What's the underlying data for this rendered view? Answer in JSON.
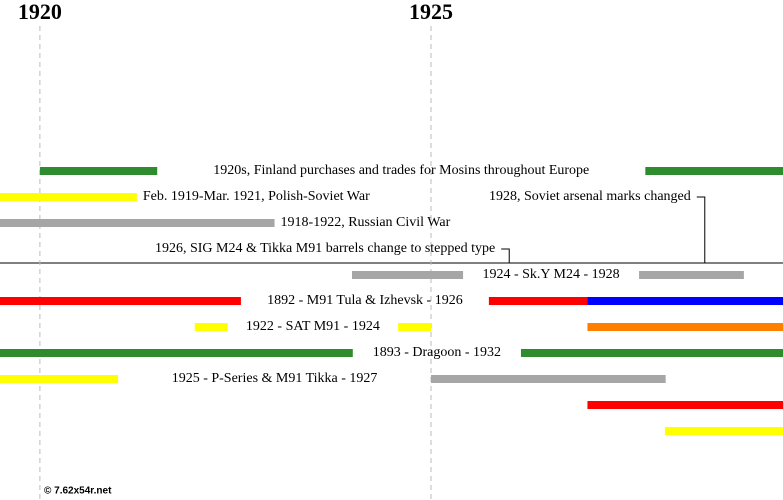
{
  "chart_data": {
    "type": "timeline",
    "xlim": [
      1919.49,
      1929.5
    ],
    "xticks": [
      1920,
      1925
    ],
    "grid": true,
    "rows": [
      {
        "label": "1920s, Finland purchases and trades for Mosins throughout Europe",
        "segments": [
          {
            "start": 1920.0,
            "end": 1921.5,
            "color": "#2e8b2e"
          },
          {
            "start": 1927.74,
            "end": 1929.5,
            "color": "#2e8b2e"
          }
        ]
      },
      {
        "label": "Feb. 1919-Mar. 1921, Polish-Soviet War",
        "segments": [
          {
            "start": 1919.49,
            "end": 1921.24,
            "color": "#ffff00"
          }
        ]
      },
      {
        "label": "1918-1922, Russian Civil War",
        "segments": [
          {
            "start": 1919.49,
            "end": 1923.0,
            "color": "#a6a6a6"
          }
        ]
      },
      {
        "label": "1924 - Sk.Y M24 - 1928",
        "segments": [
          {
            "start": 1923.99,
            "end": 1925.41,
            "color": "#a6a6a6"
          },
          {
            "start": 1927.66,
            "end": 1929.0,
            "color": "#a6a6a6"
          }
        ]
      },
      {
        "label": "1892 - M91 Tula & Izhevsk - 1926",
        "segments": [
          {
            "start": 1919.49,
            "end": 1922.57,
            "color": "#ff0000"
          },
          {
            "start": 1925.74,
            "end": 1927.0,
            "color": "#ff0000"
          },
          {
            "start": 1927.0,
            "end": 1929.5,
            "color": "#0000ff"
          }
        ]
      },
      {
        "label": "1922 - SAT M91 - 1924",
        "segments": [
          {
            "start": 1921.98,
            "end": 1922.4,
            "color": "#ffff00"
          },
          {
            "start": 1924.58,
            "end": 1925.0,
            "color": "#ffff00"
          },
          {
            "start": 1927.0,
            "end": 1929.5,
            "color": "#ff8000"
          }
        ]
      },
      {
        "label": "1893 - Dragoon - 1932",
        "segments": [
          {
            "start": 1919.49,
            "end": 1924.0,
            "color": "#2e8b2e"
          },
          {
            "start": 1926.15,
            "end": 1929.5,
            "color": "#2e8b2e"
          }
        ]
      },
      {
        "label": "1925 - P-Series & M91 Tikka - 1927",
        "segments": [
          {
            "start": 1919.49,
            "end": 1921.0,
            "color": "#ffff00"
          },
          {
            "start": 1925.0,
            "end": 1928.0,
            "color": "#a6a6a6"
          }
        ]
      },
      {
        "segments": [
          {
            "start": 1927.0,
            "end": 1929.5,
            "color": "#ff0000"
          }
        ]
      },
      {
        "segments": [
          {
            "start": 1927.99,
            "end": 1929.5,
            "color": "#ffff00"
          }
        ]
      }
    ],
    "annotations": [
      {
        "label": "1928, Soviet arsenal marks changed",
        "x": 1928.5
      },
      {
        "label": "1926, SIG M24 & Tikka M91 barrels change to stepped type",
        "x": 1926.0
      }
    ],
    "credit": "© 7.62x54r.net"
  }
}
